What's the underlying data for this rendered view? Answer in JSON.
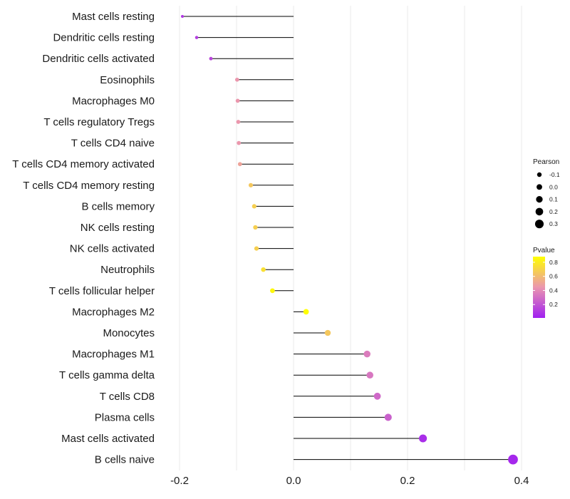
{
  "chart_data": {
    "type": "lollipop",
    "title": "",
    "xlabel": "",
    "ylabel": "",
    "xlim": [
      -0.2,
      0.4
    ],
    "xticks": [
      -0.2,
      0.0,
      0.2,
      0.4
    ],
    "xtick_labels": [
      "-0.2",
      "0.0",
      "0.2",
      "0.4"
    ],
    "grid": true,
    "categories": [
      "Mast cells resting",
      "Dendritic cells resting",
      "Dendritic cells activated",
      "Eosinophils",
      "Macrophages M0",
      "T cells regulatory  Tregs",
      "T cells CD4 naive",
      "T cells CD4 memory activated",
      "T cells CD4 memory resting",
      "B cells memory",
      "NK cells resting",
      "NK cells activated",
      "Neutrophils",
      "T cells follicular helper",
      "Macrophages M2",
      "Monocytes",
      "Macrophages M1",
      "T cells gamma delta",
      "T cells CD8",
      "Plasma cells",
      "Mast cells activated",
      "B cells naive"
    ],
    "pearson": [
      -0.195,
      -0.17,
      -0.145,
      -0.099,
      -0.098,
      -0.097,
      -0.096,
      -0.094,
      -0.075,
      -0.069,
      -0.067,
      -0.065,
      -0.053,
      -0.037,
      0.022,
      0.06,
      0.129,
      0.134,
      0.147,
      0.166,
      0.227,
      0.385
    ],
    "pvalue": [
      0.1,
      0.12,
      0.15,
      0.45,
      0.45,
      0.45,
      0.45,
      0.5,
      0.65,
      0.68,
      0.68,
      0.68,
      0.75,
      0.85,
      0.9,
      0.65,
      0.35,
      0.33,
      0.28,
      0.25,
      0.06,
      0.04
    ],
    "legend": {
      "size_title": "Pearson",
      "size_values": [
        -0.1,
        0.0,
        0.1,
        0.2,
        0.3
      ],
      "size_labels": [
        "-0.1",
        "0.0",
        "0.1",
        "0.2",
        "0.3"
      ],
      "color_title": "Pvalue",
      "color_ticks": [
        0.2,
        0.4,
        0.6,
        0.8
      ],
      "color_tick_labels": [
        "0.2",
        "0.4",
        "0.6",
        "0.8"
      ],
      "color_range": [
        0.01,
        0.88
      ],
      "color_low": "#a020f0",
      "color_high": "#ffff00",
      "placement": "right"
    },
    "segment_color": "#000000"
  }
}
